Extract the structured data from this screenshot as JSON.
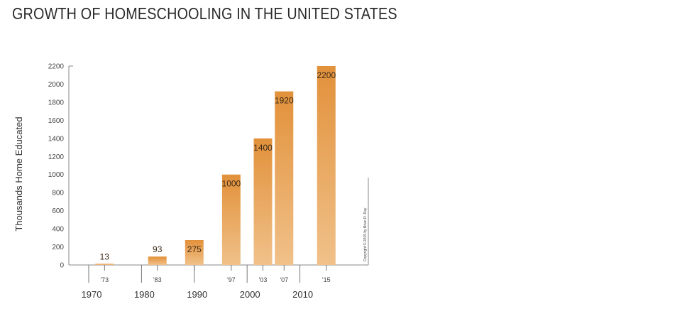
{
  "chart_data": {
    "type": "bar",
    "title": "GROWTH OF HOMESCHOOLING IN THE UNITED STATES",
    "ylabel": "Thousands Home Educated",
    "xlabel": "",
    "ylim": [
      0,
      2200
    ],
    "yticks": [
      0,
      200,
      400,
      600,
      800,
      1000,
      1200,
      1400,
      1600,
      1800,
      2000,
      2200
    ],
    "decades": [
      "1970",
      "1980",
      "1990",
      "2000",
      "2010"
    ],
    "bars": [
      {
        "year": 1973,
        "tick_label": "'73",
        "value": 13,
        "label": "13"
      },
      {
        "year": 1983,
        "tick_label": "'83",
        "value": 93,
        "label": "93"
      },
      {
        "year": 1990,
        "tick_label": "",
        "value": 275,
        "label": "275"
      },
      {
        "year": 1997,
        "tick_label": "'97",
        "value": 1000,
        "label": "1000"
      },
      {
        "year": 2003,
        "tick_label": "'03",
        "value": 1400,
        "label": "1400"
      },
      {
        "year": 2007,
        "tick_label": "'07",
        "value": 1920,
        "label": "1920"
      },
      {
        "year": 2015,
        "tick_label": "'15",
        "value": 2200,
        "label": "2200"
      }
    ],
    "grid": false,
    "bar_color_top": "#e2913a",
    "bar_color_bottom": "#f0c18a",
    "copyright": "Copyright © 2015 by Brian D. Ray"
  }
}
